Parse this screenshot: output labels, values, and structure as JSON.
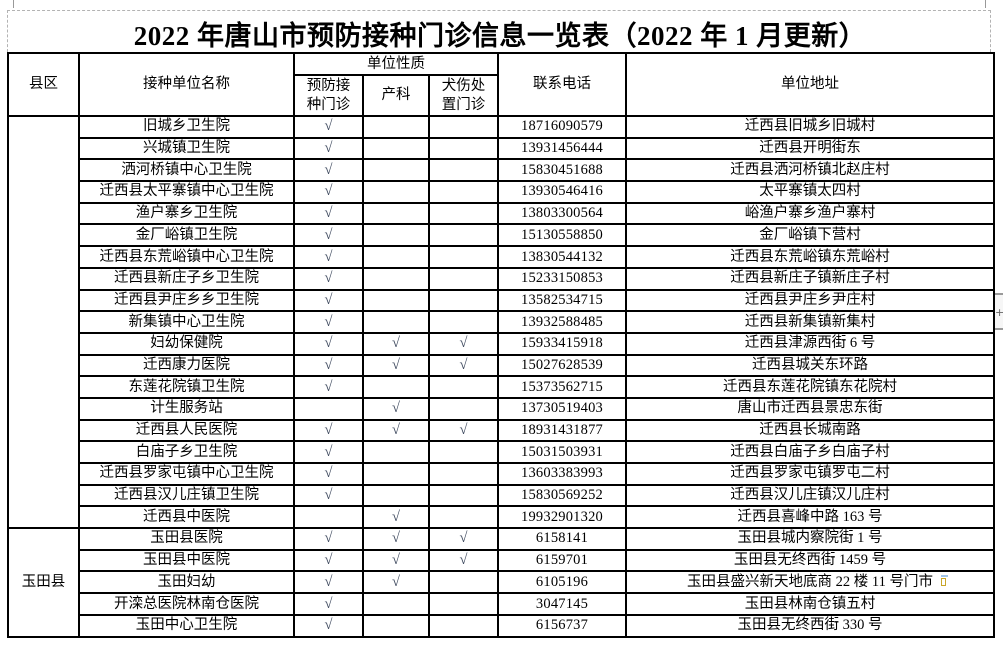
{
  "page": {
    "title": "2022 年唐山市预防接种门诊信息一览表（2022 年 1 月更新）"
  },
  "colors": {
    "border": "#000000",
    "check": "#3f4a5f",
    "dash": "#b3b3b3",
    "sb_track": "#f6f6f6",
    "sb_line": "#9a9a9a"
  },
  "icons": {
    "scrollbar_grip": "+"
  },
  "table": {
    "check_glyph": "√",
    "headers": {
      "county": "县区",
      "unit_name": "接种单位名称",
      "unit_nature": "单位性质",
      "vaccination_clinic": "预防接\n种门诊",
      "obstetrics": "产科",
      "dog_bite_clinic": "犬伤处\n置门诊",
      "phone": "联系电话",
      "address": "单位地址"
    },
    "sections": [
      {
        "county": "",
        "rows": [
          {
            "name": "旧城乡卫生院",
            "checks": [
              1,
              0,
              0
            ],
            "phone": "18716090579",
            "address": "迁西县旧城乡旧城村"
          },
          {
            "name": "兴城镇卫生院",
            "checks": [
              1,
              0,
              0
            ],
            "phone": "13931456444",
            "address": "迁西县开明街东"
          },
          {
            "name": "洒河桥镇中心卫生院",
            "checks": [
              1,
              0,
              0
            ],
            "phone": "15830451688",
            "address": "迁西县洒河桥镇北赵庄村"
          },
          {
            "name": "迁西县太平寨镇中心卫生院",
            "checks": [
              1,
              0,
              0
            ],
            "phone": "13930546416",
            "address": "太平寨镇太四村"
          },
          {
            "name": "渔户寨乡卫生院",
            "checks": [
              1,
              0,
              0
            ],
            "phone": "13803300564",
            "address": "峪渔户寨乡渔户寨村"
          },
          {
            "name": "金厂峪镇卫生院",
            "checks": [
              1,
              0,
              0
            ],
            "phone": "15130558850",
            "address": "金厂峪镇下营村"
          },
          {
            "name": "迁西县东荒峪镇中心卫生院",
            "checks": [
              1,
              0,
              0
            ],
            "phone": "13830544132",
            "address": "迁西县东荒峪镇东荒峪村"
          },
          {
            "name": "迁西县新庄子乡卫生院",
            "checks": [
              1,
              0,
              0
            ],
            "phone": "15233150853",
            "address": "迁西县新庄子镇新庄子村"
          },
          {
            "name": "迁西县尹庄乡乡卫生院",
            "checks": [
              1,
              0,
              0
            ],
            "phone": "13582534715",
            "address": "迁西县尹庄乡尹庄村"
          },
          {
            "name": "新集镇中心卫生院",
            "checks": [
              1,
              0,
              0
            ],
            "phone": "13932588485",
            "address": "迁西县新集镇新集村"
          },
          {
            "name": "妇幼保健院",
            "checks": [
              1,
              1,
              1
            ],
            "phone": "15933415918",
            "address": "迁西县津源西街 6 号"
          },
          {
            "name": "迁西康力医院",
            "checks": [
              1,
              1,
              1
            ],
            "phone": "15027628539",
            "address": "迁西县城关东环路"
          },
          {
            "name": "东莲花院镇卫生院",
            "checks": [
              1,
              0,
              0
            ],
            "phone": "15373562715",
            "address": "迁西县东莲花院镇东花院村"
          },
          {
            "name": "计生服务站",
            "checks": [
              0,
              1,
              0
            ],
            "phone": "13730519403",
            "address": "唐山市迁西县景忠东街"
          },
          {
            "name": "迁西县人民医院",
            "checks": [
              1,
              1,
              1
            ],
            "phone": "18931431877",
            "address": "迁西县长城南路"
          },
          {
            "name": "白庙子乡卫生院",
            "checks": [
              1,
              0,
              0
            ],
            "phone": "15031503931",
            "address": "迁西县白庙子乡白庙子村"
          },
          {
            "name": "迁西县罗家屯镇中心卫生院",
            "checks": [
              1,
              0,
              0
            ],
            "phone": "13603383993",
            "address": "迁西县罗家屯镇罗屯二村"
          },
          {
            "name": "迁西县汉儿庄镇卫生院",
            "checks": [
              1,
              0,
              0
            ],
            "phone": "15830569252",
            "address": "迁西县汉儿庄镇汉儿庄村"
          },
          {
            "name": "迁西县中医院",
            "checks": [
              0,
              1,
              0
            ],
            "phone": "19932901320",
            "address": "迁西县喜峰中路 163 号"
          }
        ]
      },
      {
        "county": "玉田县",
        "rows": [
          {
            "name": "玉田县医院",
            "checks": [
              1,
              1,
              1
            ],
            "phone": "6158141",
            "address": "玉田县城内察院街 1 号"
          },
          {
            "name": "玉田县中医院",
            "checks": [
              1,
              1,
              1
            ],
            "phone": "6159701",
            "address": "玉田县无终西街 1459 号"
          },
          {
            "name": "玉田妇幼",
            "checks": [
              1,
              1,
              0
            ],
            "phone": "6105196",
            "address": "玉田县盛兴新天地底商 22 楼 11 号门市"
          },
          {
            "name": "开滦总医院林南仓医院",
            "checks": [
              1,
              0,
              0
            ],
            "phone": "3047145",
            "address": "玉田县林南仓镇五村"
          },
          {
            "name": "玉田中心卫生院",
            "checks": [
              1,
              0,
              0
            ],
            "phone": "6156737",
            "address": "玉田县无终西街 330 号"
          }
        ]
      }
    ]
  }
}
